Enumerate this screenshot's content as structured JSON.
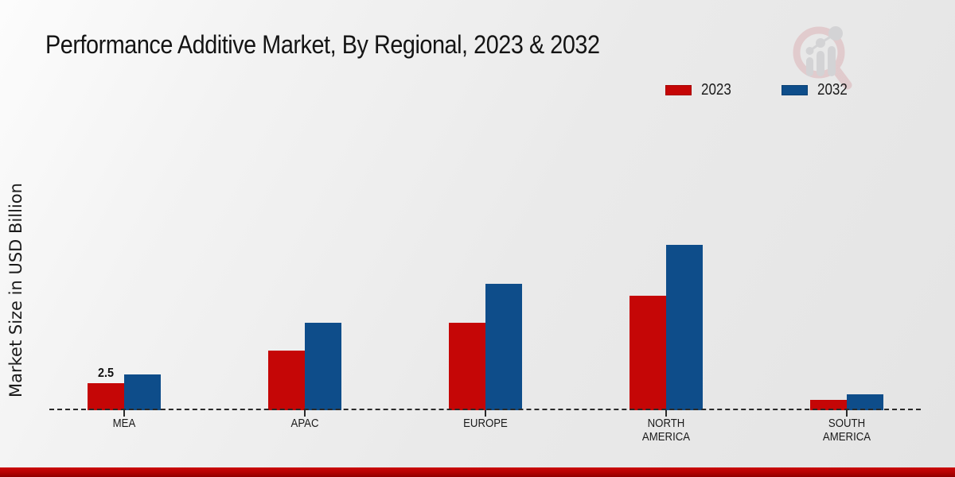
{
  "header": {
    "title": "Performance Additive Market, By Regional, 2023 & 2032"
  },
  "legend": {
    "items": [
      {
        "label": "2023",
        "color": "#c50606"
      },
      {
        "label": "2032",
        "color": "#0e4d8a"
      }
    ]
  },
  "chart_data": {
    "type": "bar",
    "title": "Performance Additive Market, By Regional, 2023 & 2032",
    "xlabel": "",
    "ylabel": "Market Size in USD Billion",
    "categories": [
      "MEA",
      "APAC",
      "EUROPE",
      "NORTH AMERICA",
      "SOUTH AMERICA"
    ],
    "series": [
      {
        "name": "2023",
        "color": "#c50606",
        "values": [
          2.5,
          5.5,
          8.1,
          10.6,
          0.95
        ]
      },
      {
        "name": "2032",
        "color": "#0e4d8a",
        "values": [
          3.3,
          8.1,
          11.7,
          15.3,
          1.45
        ]
      }
    ],
    "annotations": [
      {
        "series": "2023",
        "category": "MEA",
        "text": "2.5"
      }
    ],
    "ylim": [
      0,
      16
    ],
    "grid": false,
    "baseline_style": "dashed",
    "legend_position": "top-right"
  },
  "footer": {
    "accent_color": "#c00000"
  }
}
